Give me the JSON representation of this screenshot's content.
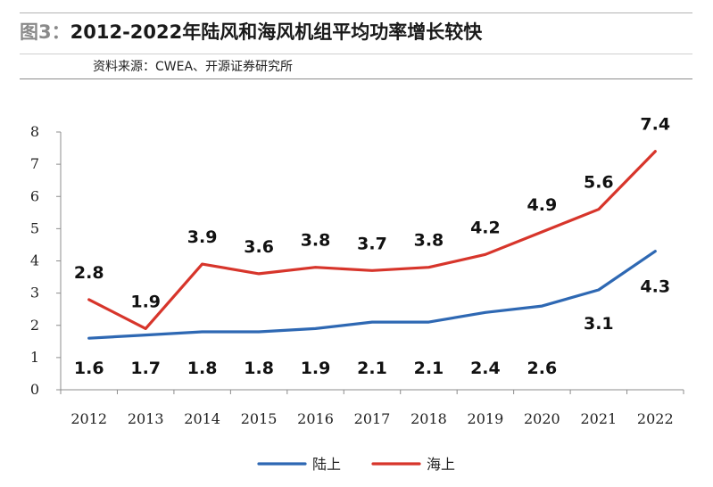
{
  "header": {
    "figure_label": "图3：",
    "title": "2012-2022年陆风和海风机组平均功率增长较快",
    "source": "资料来源：CWEA、开源证券研究所"
  },
  "chart_data": {
    "type": "line",
    "title": "",
    "xlabel": "",
    "ylabel": "",
    "categories": [
      "2012",
      "2013",
      "2014",
      "2015",
      "2016",
      "2017",
      "2018",
      "2019",
      "2020",
      "2021",
      "2022"
    ],
    "ylim": [
      0,
      8
    ],
    "yticks": [
      0,
      1,
      2,
      3,
      4,
      5,
      6,
      7,
      8
    ],
    "grid": false,
    "legend_position": "bottom",
    "series": [
      {
        "name": "陆上",
        "color": "#2e68b3",
        "values": [
          1.6,
          1.7,
          1.8,
          1.8,
          1.9,
          2.1,
          2.1,
          2.4,
          2.6,
          3.1,
          4.3
        ]
      },
      {
        "name": "海上",
        "color": "#d7352b",
        "values": [
          2.8,
          1.9,
          3.9,
          3.6,
          3.8,
          3.7,
          3.8,
          4.2,
          4.9,
          5.6,
          7.4
        ]
      }
    ]
  }
}
